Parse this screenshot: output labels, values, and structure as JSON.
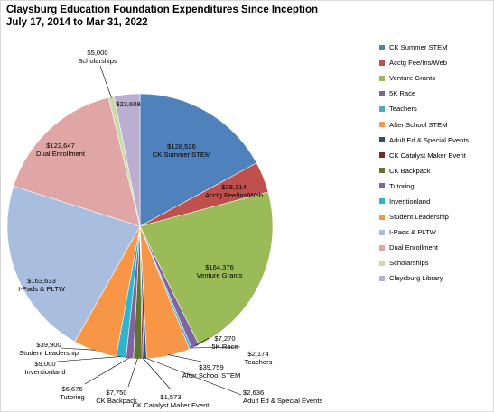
{
  "chart_data": {
    "type": "pie",
    "title_lines": [
      "Claysburg Education Foundation Expenditures Since Inception",
      "July 17, 2014  to Mar 31, 2022"
    ],
    "legend_position": "right",
    "slices": [
      {
        "name": "CK Summer STEM",
        "value": 128526,
        "value_label": "$128,526",
        "color": "#4f81bd"
      },
      {
        "name": "Acctg Fee/Ins/Web",
        "value": 28314,
        "value_label": "$28,314",
        "color": "#c0504d"
      },
      {
        "name": "Venture Grants",
        "value": 164376,
        "value_label": "$164,376",
        "color": "#9bbb59"
      },
      {
        "name": "5K Race",
        "value": 7270,
        "value_label": "$7,270",
        "color": "#8064a2"
      },
      {
        "name": "Teachers",
        "value": 2174,
        "value_label": "$2,174",
        "color": "#4bacc6"
      },
      {
        "name": "After School STEM",
        "value": 39759,
        "value_label": "$39,759",
        "color": "#f79646"
      },
      {
        "name": "Adult Ed & Special Events",
        "value": 2636,
        "value_label": "$2,636",
        "color": "#2c4d75"
      },
      {
        "name": "CK Catalyst Maker Event",
        "value": 1573,
        "value_label": "$1,573",
        "color": "#772c2a"
      },
      {
        "name": "CK Backpack",
        "value": 7750,
        "value_label": "$7,750",
        "color": "#5f7530"
      },
      {
        "name": "Tutoring",
        "value": 6676,
        "value_label": "$6,676",
        "color": "#8064a2"
      },
      {
        "name": "Inventionland",
        "value": 9000,
        "value_label": "$9,000",
        "color": "#31b4cd"
      },
      {
        "name": "Student Leadership",
        "value": 39900,
        "value_label": "$39,900",
        "color": "#f79646"
      },
      {
        "name": "I-Pads & PLTW",
        "value": 163633,
        "value_label": "$163,633",
        "color": "#a9bedf"
      },
      {
        "name": "Dual Enrollment",
        "value": 122647,
        "value_label": "$122,647",
        "color": "#dfa6a5"
      },
      {
        "name": "Scholarships",
        "value": 5000,
        "value_label": "$5,000",
        "color": "#c9d9a7"
      },
      {
        "name": "Claysburg Library",
        "value": 23608,
        "value_label": "$23,608",
        "color": "#bcaed0"
      }
    ]
  }
}
